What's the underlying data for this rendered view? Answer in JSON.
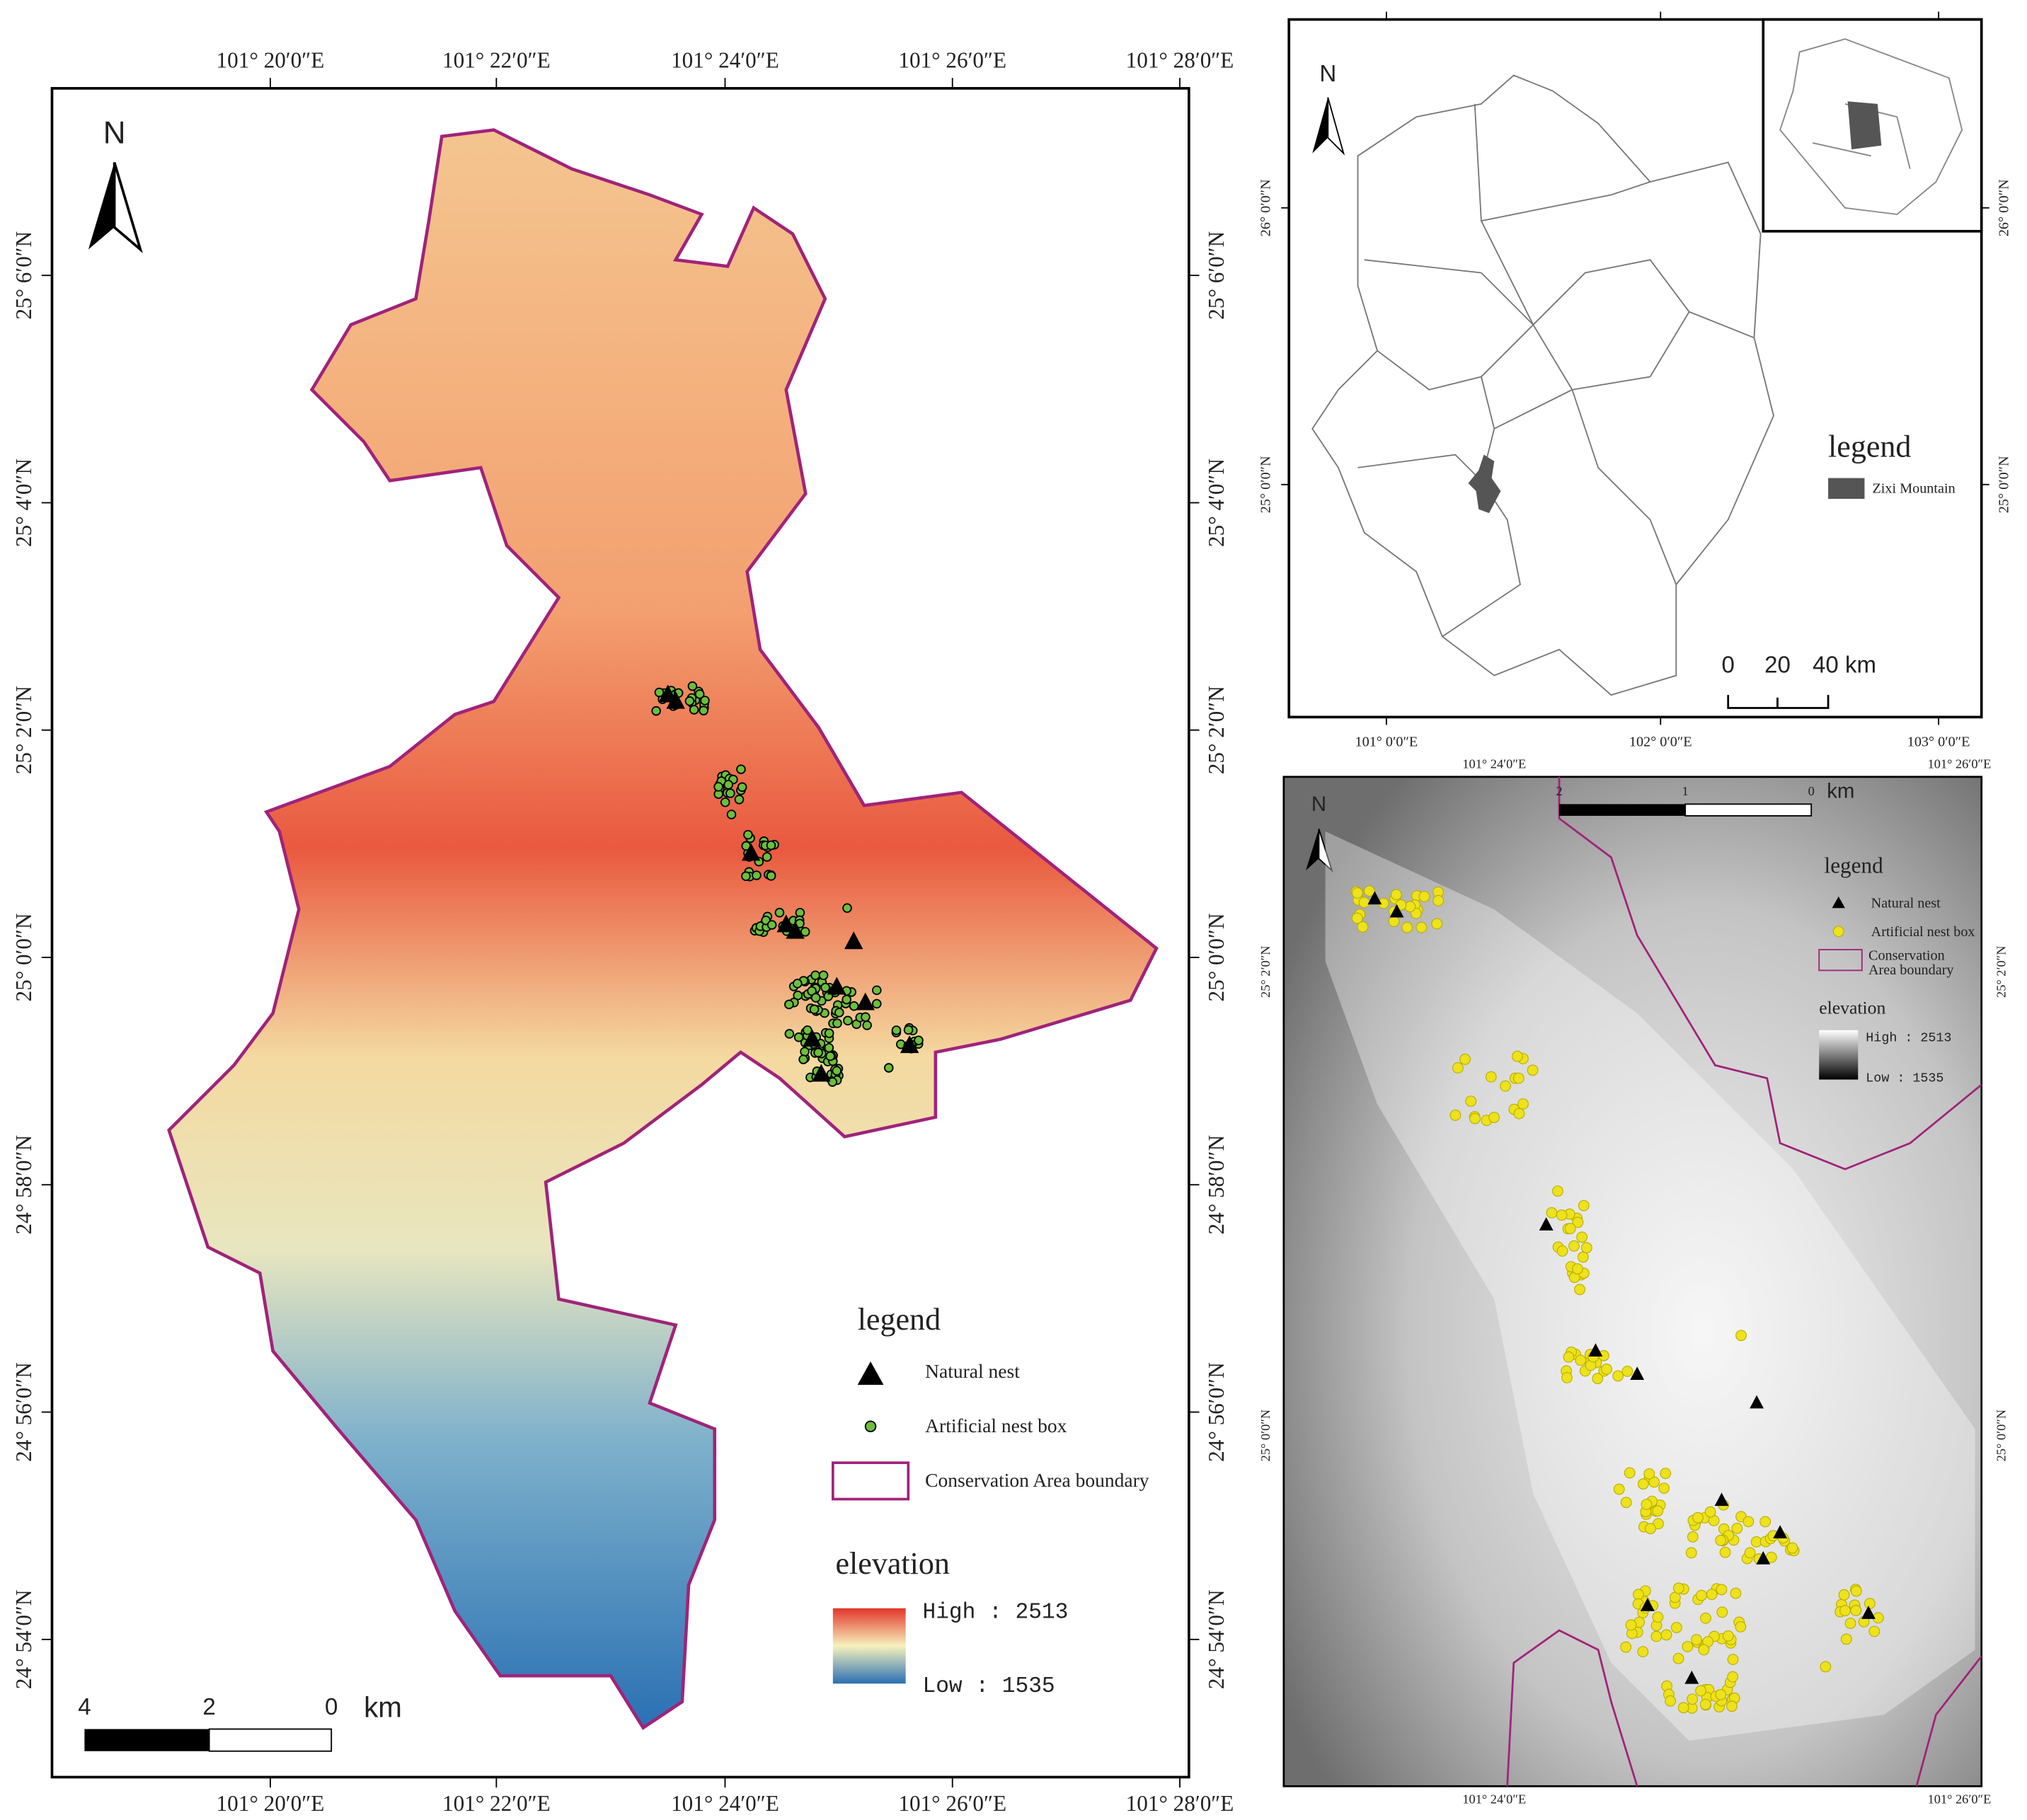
{
  "main_map": {
    "top_labels": [
      "101° 20′0″E",
      "101° 22′0″E",
      "101° 24′0″E",
      "101° 26′0″E",
      "101° 28′0″E"
    ],
    "bottom_labels": [
      "101° 20′0″E",
      "101° 22′0″E",
      "101° 24′0″E",
      "101° 26′0″E",
      "101° 28′0″E"
    ],
    "left_labels": [
      "25° 6′0″N",
      "25° 4′0″N",
      "25° 2′0″N",
      "25° 0′0″N",
      "24° 58′0″N",
      "24° 56′0″N",
      "24° 54′0″N"
    ],
    "right_labels": [
      "25° 6′0″N",
      "25° 4′0″N",
      "25° 2′0″N",
      "25° 0′0″N",
      "24° 58′0″N",
      "24° 56′0″N",
      "24° 54′0″N"
    ],
    "north": "N",
    "legend": {
      "title": "legend",
      "items": [
        "Natural nest",
        "Artificial nest box",
        "Conservation Area boundary"
      ]
    },
    "elevation": {
      "title": "elevation",
      "high": "High : 2513",
      "low": "Low : 1535"
    },
    "scale": {
      "labels": [
        "4",
        "2",
        "0"
      ],
      "unit": "km"
    }
  },
  "locator_map": {
    "bottom_labels": [
      "101° 0′0″E",
      "102° 0′0″E",
      "103° 0′0″E"
    ],
    "left_labels": [
      "26° 0′0″N",
      "25° 0′0″N"
    ],
    "right_labels": [
      "26° 0′0″N",
      "25° 0′0″N"
    ],
    "north": "N",
    "legend": {
      "title": "legend",
      "items": [
        "Zixi Mountain"
      ]
    },
    "scale": {
      "labels": [
        "0",
        "20",
        "40 km"
      ]
    }
  },
  "detail_map": {
    "top_labels": [
      "101° 24′0″E",
      "101° 26′0″E"
    ],
    "bottom_labels": [
      "101° 24′0″E",
      "101° 26′0″E"
    ],
    "left_labels": [
      "25° 2′0″N",
      "25° 0′0″N"
    ],
    "right_labels": [
      "25° 2′0″N",
      "25° 0′0″N"
    ],
    "north": "N",
    "scale": {
      "labels": [
        "2",
        "1",
        "0"
      ],
      "unit": "km"
    },
    "legend": {
      "title": "legend",
      "items": [
        "Natural nest",
        "Artificial nest box",
        "Conservation Area boundary"
      ]
    },
    "elevation": {
      "title": "elevation",
      "high": "High : 2513",
      "low": "Low : 1535"
    }
  }
}
